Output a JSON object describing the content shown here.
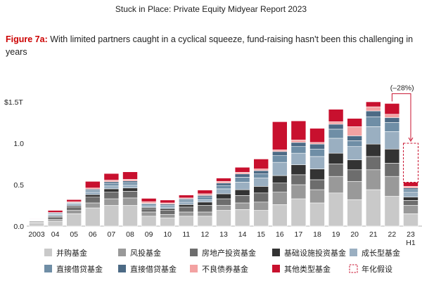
{
  "report_title": "Stuck in Place: Private Equity Midyear Report 2023",
  "figure": {
    "label": "Figure 7a:",
    "text": " With limited partners caught in a cyclical squeeze, fund-raising hasn't been this challenging in years"
  },
  "chart_data": {
    "type": "bar",
    "stacked": true,
    "ylabel": "",
    "ylim": [
      0,
      1.5
    ],
    "y_ticks": [
      {
        "value": 0.0,
        "label": "0.0"
      },
      {
        "value": 0.5,
        "label": "0.5"
      },
      {
        "value": 1.0,
        "label": "1.0"
      },
      {
        "value": 1.5,
        "label": "$1.5T"
      }
    ],
    "categories": [
      "2003",
      "04",
      "05",
      "06",
      "07",
      "08",
      "09",
      "10",
      "11",
      "12",
      "13",
      "14",
      "15",
      "16",
      "17",
      "18",
      "19",
      "20",
      "21",
      "22",
      "23"
    ],
    "category_sublabels": {
      "23": "H1"
    },
    "series": [
      {
        "name": "并购基金",
        "color": "#c9c9c9",
        "values": [
          0.04,
          0.06,
          0.15,
          0.22,
          0.25,
          0.25,
          0.12,
          0.1,
          0.12,
          0.12,
          0.19,
          0.2,
          0.19,
          0.26,
          0.33,
          0.28,
          0.4,
          0.32,
          0.44,
          0.36,
          0.15
        ]
      },
      {
        "name": "风投基金",
        "color": "#999999",
        "values": [
          0.01,
          0.02,
          0.04,
          0.06,
          0.08,
          0.09,
          0.05,
          0.04,
          0.05,
          0.05,
          0.06,
          0.08,
          0.1,
          0.15,
          0.17,
          0.16,
          0.2,
          0.22,
          0.24,
          0.24,
          0.1
        ]
      },
      {
        "name": "房地产投资基金",
        "color": "#6d6d6d",
        "values": [
          0.01,
          0.03,
          0.04,
          0.07,
          0.08,
          0.08,
          0.04,
          0.05,
          0.06,
          0.08,
          0.08,
          0.09,
          0.11,
          0.11,
          0.12,
          0.12,
          0.15,
          0.14,
          0.16,
          0.16,
          0.06
        ]
      },
      {
        "name": "基础设施投资基金",
        "color": "#333333",
        "values": [
          0.005,
          0.01,
          0.015,
          0.03,
          0.04,
          0.04,
          0.015,
          0.02,
          0.03,
          0.04,
          0.06,
          0.07,
          0.08,
          0.09,
          0.12,
          0.13,
          0.13,
          0.12,
          0.15,
          0.17,
          0.04
        ]
      },
      {
        "name": "成长型基金",
        "color": "#9aafc1",
        "values": [
          0.005,
          0.02,
          0.02,
          0.03,
          0.035,
          0.035,
          0.02,
          0.02,
          0.03,
          0.03,
          0.06,
          0.09,
          0.1,
          0.16,
          0.14,
          0.15,
          0.18,
          0.16,
          0.21,
          0.21,
          0.06
        ]
      },
      {
        "name": "直接借贷基金",
        "color": "#6f8ea6",
        "values": [
          0.005,
          0.01,
          0.01,
          0.02,
          0.03,
          0.03,
          0.02,
          0.02,
          0.025,
          0.03,
          0.04,
          0.06,
          0.05,
          0.08,
          0.08,
          0.09,
          0.11,
          0.07,
          0.12,
          0.11,
          0.03
        ]
      },
      {
        "name": "直接借贷基金",
        "color": "#4c6a85",
        "values": [
          0.005,
          0.01,
          0.01,
          0.015,
          0.02,
          0.02,
          0.01,
          0.015,
          0.015,
          0.02,
          0.03,
          0.04,
          0.04,
          0.05,
          0.05,
          0.06,
          0.06,
          0.06,
          0.07,
          0.06,
          0.02
        ]
      },
      {
        "name": "不良债券基金",
        "color": "#f3a2a2",
        "values": [
          0.005,
          0.005,
          0.01,
          0.015,
          0.02,
          0.02,
          0.02,
          0.015,
          0.01,
          0.02,
          0.02,
          0.02,
          0.02,
          0.02,
          0.03,
          0.02,
          0.03,
          0.11,
          0.05,
          0.04,
          0.02
        ]
      },
      {
        "name": "其他类型基金",
        "color": "#c8102e",
        "values": [
          0.005,
          0.025,
          0.025,
          0.08,
          0.08,
          0.09,
          0.04,
          0.035,
          0.035,
          0.045,
          0.04,
          0.06,
          0.12,
          0.34,
          0.23,
          0.17,
          0.15,
          0.1,
          0.06,
          0.13,
          0.05
        ]
      }
    ],
    "annualized": {
      "category": "23",
      "total": 1.0,
      "color": "#c8102e"
    },
    "annotation": {
      "text": "(–28%)",
      "from": "22",
      "to": "23"
    },
    "legend": {
      "position": "bottom",
      "extra_item": {
        "name": "年化假设",
        "style": "dashed-box",
        "color": "#c8102e"
      }
    },
    "grid": false
  }
}
